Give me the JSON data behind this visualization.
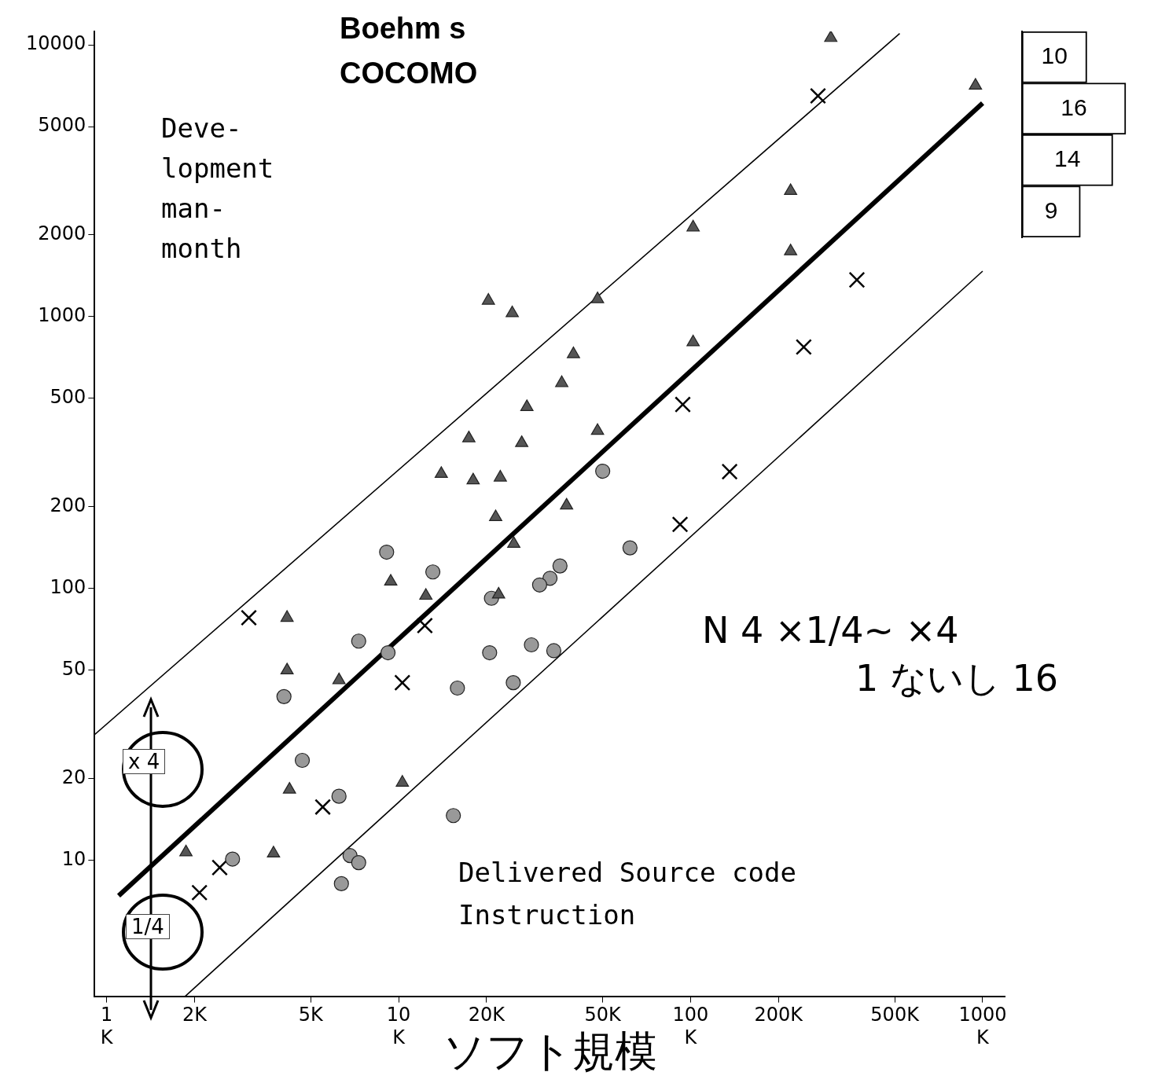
{
  "chart_data": [
    {
      "type": "scatter",
      "title": "Boehm s\nCOCOMO",
      "xlabel": "ソフト規模",
      "ylabel": "Deve-\nlopment\nman-\nmonth",
      "annotations": [
        "Delivered Source code\nInstruction",
        "N 4 ×1/4~ ×4",
        "1 ないし 16",
        "x 4",
        "1/4"
      ],
      "log": "xy",
      "grid": false,
      "legend": false,
      "xlim": [
        0.91,
        1190
      ],
      "ylim": [
        3.16,
        11200
      ],
      "xticks": [
        {
          "value": 1,
          "label": "1\nK"
        },
        {
          "value": 2,
          "label": "2K"
        },
        {
          "value": 5,
          "label": "5K"
        },
        {
          "value": 10,
          "label": "10\nK"
        },
        {
          "value": 20,
          "label": "20K"
        },
        {
          "value": 50,
          "label": "50K"
        },
        {
          "value": 100,
          "label": "100\nK"
        },
        {
          "value": 200,
          "label": "200K"
        },
        {
          "value": 500,
          "label": "500K"
        },
        {
          "value": 1000,
          "label": "1000\nK"
        }
      ],
      "yticks": [
        10,
        20,
        50,
        100,
        200,
        500,
        1000,
        2000,
        5000,
        10000
      ],
      "series": [
        {
          "type": "scatter",
          "marker": "triangle",
          "color": "#555555",
          "x": [
            302,
            945,
            220,
            102,
            220,
            20.3,
            24.5,
            48,
            102,
            39.7,
            36.2,
            27.5,
            48,
            17.4,
            26.4,
            14,
            18,
            22.3,
            37.6,
            21.5,
            24.8,
            9.4,
            12.4,
            22,
            4.15,
            4.15,
            6.25,
            4.23,
            10.3,
            1.87,
            3.73
          ],
          "values": [
            10600,
            7080,
            2900,
            2130,
            1740,
            1145,
            1030,
            1160,
            805,
            728,
            570,
            465,
            380,
            357,
            343,
            264,
            250,
            256,
            202,
            183,
            146,
            106,
            94,
            95,
            78,
            50,
            46,
            18.2,
            19.3,
            10.7,
            10.6
          ]
        },
        {
          "type": "scatter",
          "marker": "circle",
          "color": "#999999",
          "x": [
            50,
            9.1,
            13.1,
            35.7,
            33,
            30.4,
            20.8,
            62,
            7.3,
            9.2,
            20.5,
            28.5,
            34,
            15.9,
            24.7,
            4.05,
            4.68,
            6.25,
            15.4,
            2.7,
            6.82,
            7.3,
            6.37
          ],
          "values": [
            270,
            136,
            115,
            121,
            109,
            103,
            92,
            141,
            64,
            58,
            58,
            62,
            59,
            43,
            45,
            40,
            23.3,
            17.2,
            14.6,
            10.1,
            10.4,
            9.8,
            8.2
          ]
        },
        {
          "type": "scatter",
          "marker": "cross",
          "color": "#000000",
          "x": [
            273,
            371,
            244,
            94,
            136,
            92,
            3.07,
            12.3,
            10.3,
            5.5,
            2.44,
            2.08
          ],
          "values": [
            6490,
            1365,
            773,
            475,
            269,
            172,
            78,
            73,
            45,
            15.7,
            9.4,
            7.6
          ]
        },
        {
          "type": "line",
          "marker": "none",
          "color": "#000000",
          "x": [
            1.1,
            1000
          ],
          "values": [
            7.4,
            6100
          ]
        },
        {
          "type": "line",
          "marker": "none",
          "color": "#000000",
          "x": [
            0.91,
            520
          ],
          "values": [
            29,
            11000
          ]
        },
        {
          "type": "line",
          "marker": "none",
          "color": "#000000",
          "x": [
            1.86,
            1000
          ],
          "values": [
            3.16,
            1470
          ]
        }
      ]
    },
    {
      "type": "bar",
      "orientation": "horizontal",
      "categories": [
        null,
        null,
        null,
        null
      ],
      "values": [
        10,
        16,
        14,
        9
      ],
      "color": "#ffffff",
      "data_labels": true,
      "tick_labels": false
    }
  ]
}
